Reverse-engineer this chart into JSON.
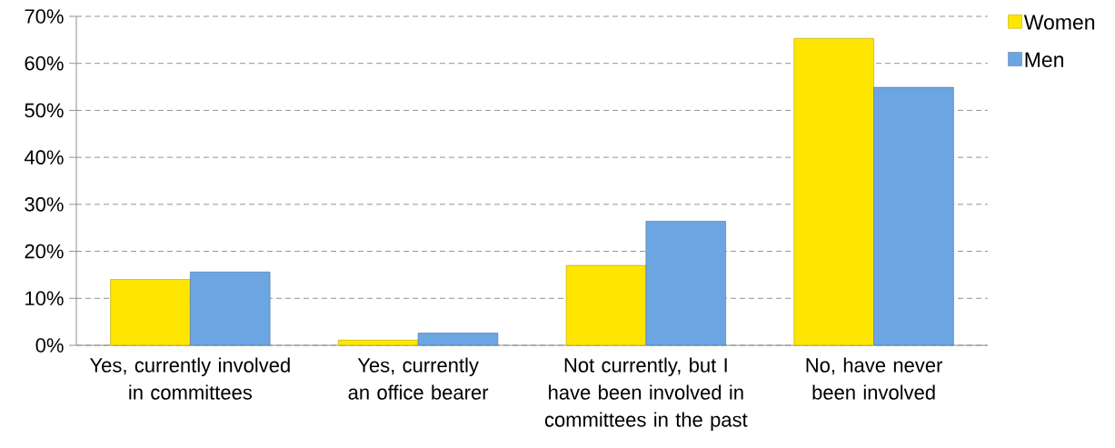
{
  "chart_data": {
    "type": "bar",
    "categories": [
      "Yes, currently involved in committees",
      "Yes, currently an office bearer",
      "Not currently, but I have been involved in committees in the past",
      "No, have never been involved"
    ],
    "series": [
      {
        "name": "Women",
        "color": "#ffe600",
        "values": [
          14,
          1.1,
          17,
          65.3
        ]
      },
      {
        "name": "Men",
        "color": "#6ca6e2",
        "values": [
          15.6,
          2.6,
          26.4,
          54.9
        ]
      }
    ],
    "ylim": [
      0,
      70
    ],
    "yticks": [
      {
        "value": 0,
        "label": "0%"
      },
      {
        "value": 10,
        "label": "10%"
      },
      {
        "value": 20,
        "label": "20%"
      },
      {
        "value": 30,
        "label": "30%"
      },
      {
        "value": 40,
        "label": "40%"
      },
      {
        "value": 50,
        "label": "50%"
      },
      {
        "value": 60,
        "label": "60%"
      },
      {
        "value": 70,
        "label": "70%"
      }
    ],
    "grid": "y",
    "legend": "right"
  }
}
